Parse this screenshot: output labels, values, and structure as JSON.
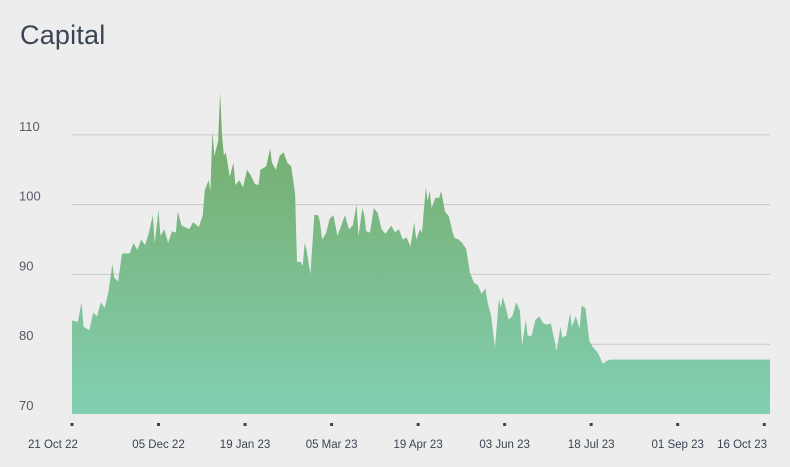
{
  "title": "Capital",
  "chart_data": {
    "type": "area",
    "title": "Capital",
    "xlabel": "",
    "ylabel": "",
    "ylim": [
      70,
      117
    ],
    "y_ticks": [
      70,
      80,
      90,
      100,
      110
    ],
    "x_ticks": [
      "21 Oct 22",
      "05 Dec 22",
      "19 Jan 23",
      "05 Mar 23",
      "19 Apr 23",
      "03 Jun 23",
      "18 Jul 23",
      "01 Sep 23",
      "16 Oct 23"
    ],
    "x_range": [
      "21 Oct 22",
      "19 Oct 23"
    ],
    "grid": true,
    "colors": {
      "top": "#74a863",
      "bottom": "#82cfb2"
    },
    "points": [
      [
        "21 Oct 22",
        83.4
      ],
      [
        "24 Oct 22",
        83.2
      ],
      [
        "26 Oct 22",
        86.0
      ],
      [
        "27 Oct 22",
        82.5
      ],
      [
        "30 Oct 22",
        82.0
      ],
      [
        "01 Nov 22",
        84.5
      ],
      [
        "03 Nov 22",
        84.0
      ],
      [
        "05 Nov 22",
        86.0
      ],
      [
        "07 Nov 22",
        85.2
      ],
      [
        "09 Nov 22",
        87.5
      ],
      [
        "11 Nov 22",
        91.5
      ],
      [
        "12 Nov 22",
        89.5
      ],
      [
        "14 Nov 22",
        89.0
      ],
      [
        "16 Nov 22",
        93.0
      ],
      [
        "20 Nov 22",
        93.0
      ],
      [
        "22 Nov 22",
        94.5
      ],
      [
        "24 Nov 22",
        93.5
      ],
      [
        "26 Nov 22",
        95.0
      ],
      [
        "28 Nov 22",
        94.2
      ],
      [
        "30 Nov 22",
        96.0
      ],
      [
        "02 Dec 22",
        98.5
      ],
      [
        "03 Dec 22",
        94.5
      ],
      [
        "05 Dec 22",
        99.2
      ],
      [
        "06 Dec 22",
        95.5
      ],
      [
        "08 Dec 22",
        96.5
      ],
      [
        "10 Dec 22",
        94.5
      ],
      [
        "12 Dec 22",
        96.2
      ],
      [
        "14 Dec 22",
        96.0
      ],
      [
        "15 Dec 22",
        99.0
      ],
      [
        "17 Dec 22",
        97.0
      ],
      [
        "21 Dec 22",
        96.5
      ],
      [
        "23 Dec 22",
        97.5
      ],
      [
        "26 Dec 22",
        96.8
      ],
      [
        "28 Dec 22",
        98.5
      ],
      [
        "29 Dec 22",
        102.0
      ],
      [
        "31 Dec 22",
        103.5
      ],
      [
        "01 Jan 23",
        102.0
      ],
      [
        "02 Jan 23",
        110.5
      ],
      [
        "03 Jan 23",
        107.0
      ],
      [
        "05 Jan 23",
        109.0
      ],
      [
        "06 Jan 23",
        116.0
      ],
      [
        "07 Jan 23",
        110.0
      ],
      [
        "08 Jan 23",
        107.0
      ],
      [
        "09 Jan 23",
        107.5
      ],
      [
        "11 Jan 23",
        104.0
      ],
      [
        "13 Jan 23",
        106.0
      ],
      [
        "14 Jan 23",
        102.8
      ],
      [
        "16 Jan 23",
        103.5
      ],
      [
        "18 Jan 23",
        102.5
      ],
      [
        "20 Jan 23",
        105.0
      ],
      [
        "22 Jan 23",
        104.2
      ],
      [
        "24 Jan 23",
        103.0
      ],
      [
        "26 Jan 23",
        102.8
      ],
      [
        "27 Jan 23",
        105.0
      ],
      [
        "30 Jan 23",
        105.5
      ],
      [
        "01 Feb 23",
        108.0
      ],
      [
        "02 Feb 23",
        106.0
      ],
      [
        "04 Feb 23",
        105.0
      ],
      [
        "06 Feb 23",
        107.0
      ],
      [
        "08 Feb 23",
        107.5
      ],
      [
        "10 Feb 23",
        106.0
      ],
      [
        "12 Feb 23",
        105.5
      ],
      [
        "14 Feb 23",
        101.5
      ],
      [
        "15 Feb 23",
        91.8
      ],
      [
        "17 Feb 23",
        91.8
      ],
      [
        "18 Feb 23",
        91.2
      ],
      [
        "19 Feb 23",
        94.5
      ],
      [
        "20 Feb 23",
        93.5
      ],
      [
        "22 Feb 23",
        90.0
      ],
      [
        "24 Feb 23",
        98.5
      ],
      [
        "26 Feb 23",
        98.5
      ],
      [
        "27 Feb 23",
        97.5
      ],
      [
        "28 Feb 23",
        95.0
      ],
      [
        "02 Mar 23",
        95.8
      ],
      [
        "04 Mar 23",
        98.0
      ],
      [
        "06 Mar 23",
        98.5
      ],
      [
        "08 Mar 23",
        95.5
      ],
      [
        "10 Mar 23",
        97.0
      ],
      [
        "12 Mar 23",
        98.5
      ],
      [
        "14 Mar 23",
        96.5
      ],
      [
        "16 Mar 23",
        97.0
      ],
      [
        "18 Mar 23",
        100.0
      ],
      [
        "19 Mar 23",
        95.5
      ],
      [
        "21 Mar 23",
        99.5
      ],
      [
        "22 Mar 23",
        98.5
      ],
      [
        "23 Mar 23",
        96.2
      ],
      [
        "25 Mar 23",
        96.0
      ],
      [
        "27 Mar 23",
        99.5
      ],
      [
        "29 Mar 23",
        98.8
      ],
      [
        "31 Mar 23",
        96.5
      ],
      [
        "02 Apr 23",
        95.8
      ],
      [
        "05 Apr 23",
        97.0
      ],
      [
        "07 Apr 23",
        96.0
      ],
      [
        "09 Apr 23",
        96.5
      ],
      [
        "11 Apr 23",
        95.0
      ],
      [
        "13 Apr 23",
        95.3
      ],
      [
        "15 Apr 23",
        94.0
      ],
      [
        "17 Apr 23",
        97.5
      ],
      [
        "18 Apr 23",
        95.0
      ],
      [
        "20 Apr 23",
        96.5
      ],
      [
        "21 Apr 23",
        96.0
      ],
      [
        "23 Apr 23",
        102.5
      ],
      [
        "24 Apr 23",
        100.5
      ],
      [
        "25 Apr 23",
        102.0
      ],
      [
        "26 Apr 23",
        99.5
      ],
      [
        "28 Apr 23",
        101.0
      ],
      [
        "30 Apr 23",
        101.0
      ],
      [
        "01 May 23",
        102.0
      ],
      [
        "03 May 23",
        99.0
      ],
      [
        "05 May 23",
        98.3
      ],
      [
        "07 May 23",
        96.0
      ],
      [
        "08 May 23",
        95.2
      ],
      [
        "10 May 23",
        95.0
      ],
      [
        "12 May 23",
        94.5
      ],
      [
        "14 May 23",
        93.6
      ],
      [
        "16 May 23",
        90.2
      ],
      [
        "18 May 23",
        88.8
      ],
      [
        "20 May 23",
        88.5
      ],
      [
        "22 May 23",
        87.2
      ],
      [
        "24 May 23",
        88.0
      ],
      [
        "25 May 23",
        86.2
      ],
      [
        "27 May 23",
        84.0
      ],
      [
        "29 May 23",
        79.5
      ],
      [
        "31 May 23",
        86.5
      ],
      [
        "01 Jun 23",
        85.2
      ],
      [
        "02 Jun 23",
        86.8
      ],
      [
        "04 Jun 23",
        84.8
      ],
      [
        "05 Jun 23",
        83.5
      ],
      [
        "07 Jun 23",
        84.0
      ],
      [
        "09 Jun 23",
        86.0
      ],
      [
        "11 Jun 23",
        84.8
      ],
      [
        "12 Jun 23",
        79.8
      ],
      [
        "14 Jun 23",
        83.5
      ],
      [
        "15 Jun 23",
        81.2
      ],
      [
        "17 Jun 23",
        81.2
      ],
      [
        "19 Jun 23",
        83.5
      ],
      [
        "21 Jun 23",
        84.0
      ],
      [
        "23 Jun 23",
        83.0
      ],
      [
        "25 Jun 23",
        82.8
      ],
      [
        "27 Jun 23",
        83.0
      ],
      [
        "29 Jun 23",
        80.5
      ],
      [
        "30 Jun 23",
        79.0
      ],
      [
        "02 Jul 23",
        82.5
      ],
      [
        "03 Jul 23",
        81.0
      ],
      [
        "05 Jul 23",
        81.2
      ],
      [
        "07 Jul 23",
        84.5
      ],
      [
        "08 Jul 23",
        82.5
      ],
      [
        "10 Jul 23",
        84.0
      ],
      [
        "12 Jul 23",
        82.2
      ],
      [
        "13 Jul 23",
        85.5
      ],
      [
        "15 Jul 23",
        85.2
      ],
      [
        "17 Jul 23",
        80.5
      ],
      [
        "19 Jul 23",
        79.5
      ],
      [
        "20 Jul 23",
        79.3
      ],
      [
        "22 Jul 23",
        78.5
      ],
      [
        "24 Jul 23",
        77.2
      ],
      [
        "26 Jul 23",
        77.6
      ],
      [
        "28 Jul 23",
        77.8
      ],
      [
        "19 Oct 23",
        77.8
      ]
    ]
  }
}
